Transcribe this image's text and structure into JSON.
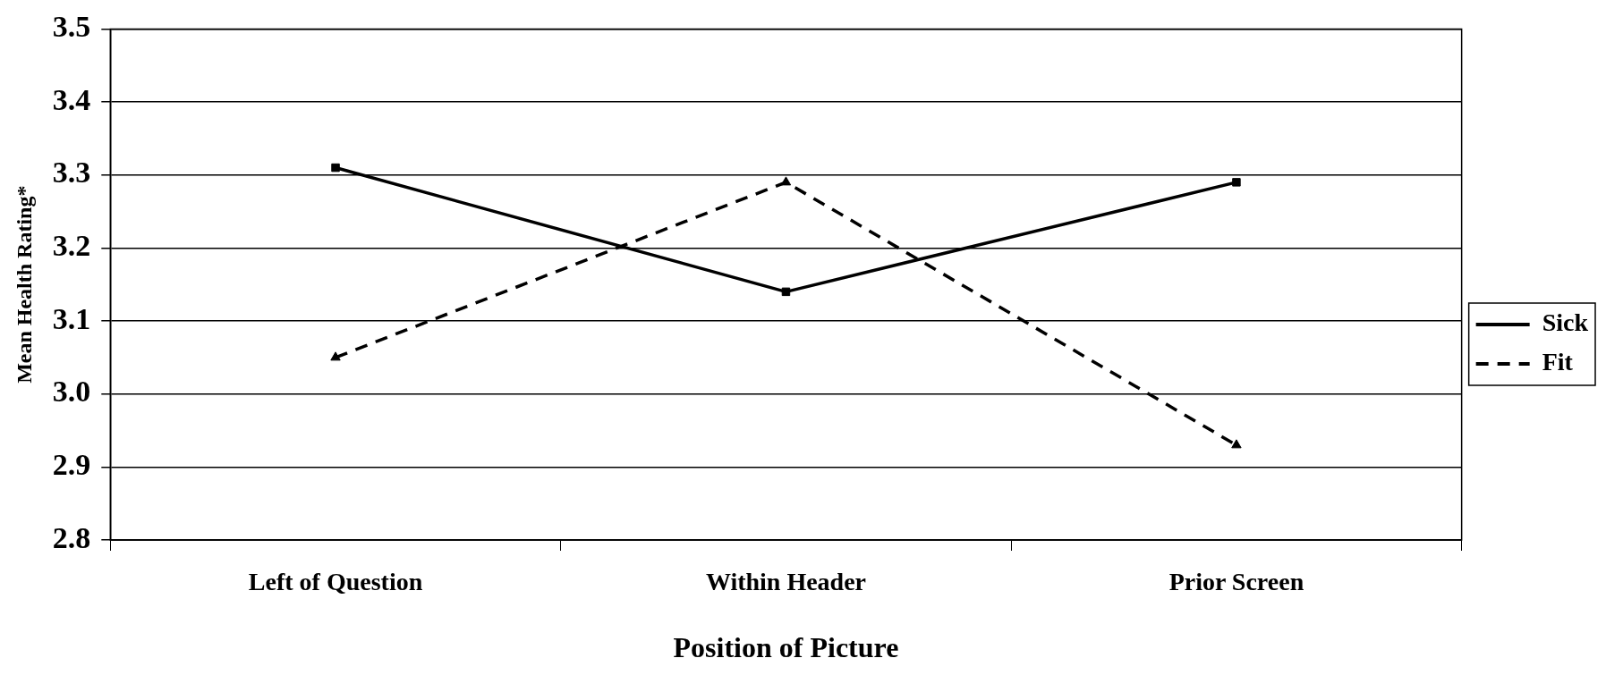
{
  "chart_data": {
    "type": "line",
    "xlabel": "Position of Picture",
    "ylabel": "Mean Health Rating*",
    "categories": [
      "Left of Question",
      "Within Header",
      "Prior Screen"
    ],
    "series": [
      {
        "name": "Sick",
        "color": "#000000",
        "values": [
          3.31,
          3.14,
          3.29
        ],
        "marker": "square",
        "line_style": "solid"
      },
      {
        "name": "Fit",
        "color": "#000000",
        "values": [
          3.05,
          3.29,
          2.93
        ],
        "marker": "triangle",
        "line_style": "dashed"
      }
    ],
    "ylim": [
      2.8,
      3.5
    ],
    "yticks": [
      2.8,
      2.9,
      {
        "value": 3,
        "label": "3.0"
      },
      3.1,
      3.2,
      3.3,
      3.4,
      3.5
    ],
    "grid": "y",
    "legend": "right"
  }
}
